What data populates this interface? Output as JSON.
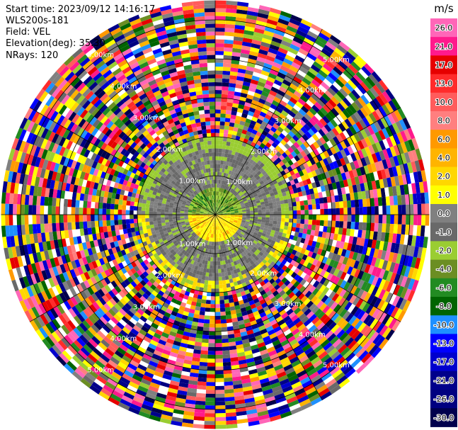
{
  "header": {
    "start_time": "Start time: 2023/09/12 14:16:17",
    "instrument": "WLS200s-181",
    "field": "Field: VEL",
    "elevation": "Elevation(deg): 35.30",
    "nrays": "NRays: 120"
  },
  "colorbar": {
    "unit": "m/s",
    "labels": [
      "26.0",
      "21.0",
      "17.0",
      "13.0",
      "10.0",
      "8.0",
      "6.0",
      "4.0",
      "2.0",
      "1.0",
      "0.0",
      "-1.0",
      "-2.0",
      "-4.0",
      "-6.0",
      "-8.0",
      "-10.0",
      "-13.0",
      "-17.0",
      "-21.0",
      "-26.0",
      "-30.0"
    ],
    "colors": [
      "#ff66b8",
      "#ff1a8c",
      "#e60000",
      "#ff2b2b",
      "#ff5c5c",
      "#ff7f7f",
      "#ff9900",
      "#ffb400",
      "#ffd700",
      "#ffff00",
      "#808080",
      "#696969",
      "#9acd32",
      "#6b8e23",
      "#228b22",
      "#006400",
      "#1e90ff",
      "#0000ff",
      "#0000cd",
      "#00008b",
      "#000080",
      "#00004d"
    ]
  },
  "chart_data": {
    "type": "heatmap",
    "title": "",
    "field": "VEL",
    "units": "m/s",
    "nrays": 120,
    "range_rings_km": [
      1.0,
      2.0,
      3.0,
      4.0,
      5.0
    ],
    "max_range_km": 5.5,
    "ring_label_text": [
      "1.00km",
      "2.00km",
      "3.00km",
      "4.00km",
      "5.00km"
    ],
    "radial_structure": [
      {
        "range_km": [
          0.0,
          0.7
        ],
        "north": "-4.0 to -1.0",
        "south": "1.0 to 6.0"
      },
      {
        "range_km": [
          0.7,
          1.7
        ],
        "dominant": "0.0 to -1.0"
      },
      {
        "range_km": [
          1.7,
          2.0
        ],
        "north": "-2.0 to -1.0",
        "south": "1.0 to 4.0"
      },
      {
        "range_km": [
          2.0,
          5.5
        ],
        "dominant": "noise, full range -30.0 to 26.0"
      }
    ]
  }
}
